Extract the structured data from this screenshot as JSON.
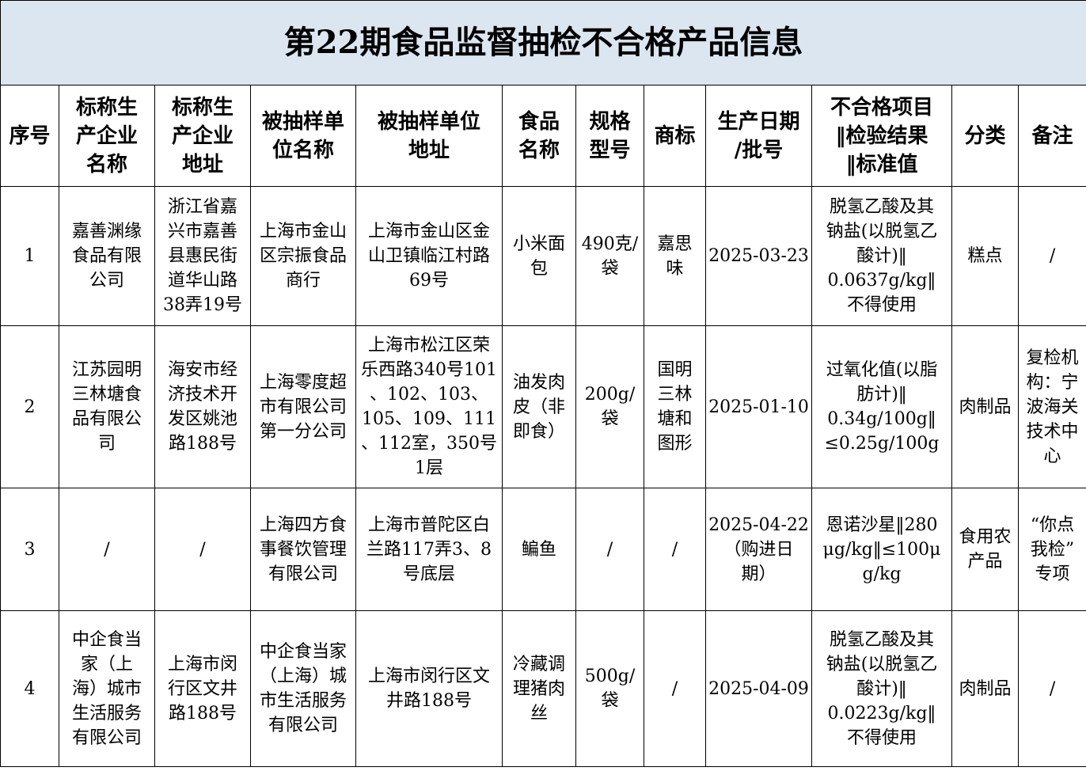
{
  "title": "第22期食品监督抽检不合格产品信息",
  "headers": [
    "序号",
    "标称生\n产企业\n名称",
    "标称生\n产企业\n地址",
    "被抽样单\n位名称",
    "被抽样单位\n地址",
    "食品\n名称",
    "规格\n型号",
    "商标",
    "生产日期\n/批号",
    "不合格项目\n‖检验结果\n‖标准值",
    "分类",
    "备注"
  ],
  "rows": [
    [
      "1",
      "嘉善渊缘\n食品有限\n公司",
      "浙江省嘉\n兴市嘉善\n县惠民街\n道华山路\n38弄19号",
      "上海市金山\n区宗振食品\n商行",
      "上海市金山区金\n山卫镇临江村路\n69号",
      "小米面\n包",
      "490克/\n袋",
      "嘉思\n味",
      "2025-03-23",
      "脱氢乙酸及其\n钠盐(以脱氢乙\n酸计)‖\n0.0637g/kg‖\n不得使用",
      "糕点",
      "/"
    ],
    [
      "2",
      "江苏园明\n三林塘食\n品有限公\n司",
      "海安市经\n济技术开\n发区姚池\n路188号",
      "上海零度超\n市有限公司\n第一分公司",
      "上海市松江区荣\n乐西路340号101\n、102、103、\n105、109、111\n、112室，350号\n1层",
      "油发肉\n皮（非\n即食）",
      "200g/\n袋",
      "国明\n三林\n塘和\n图形",
      "2025-01-10",
      "过氧化值(以脂\n肪计)‖\n0.34g/100g‖\n≤0.25g/100g",
      "肉制品",
      "复检机\n构：宁\n波海关\n技术中\n心"
    ],
    [
      "3",
      "/",
      "/",
      "上海四方食\n事餐饮管理\n有限公司",
      "上海市普陀区白\n兰路117弄3、8\n号底层",
      "鳊鱼",
      "/",
      "/",
      "2025-04-22\n（购进日\n期）",
      "恩诺沙星‖280\nμg/kg‖≤100μ\ng/kg",
      "食用农\n产品",
      "“你点\n我检”\n专项"
    ],
    [
      "4",
      "中企食当\n家（上\n海）城市\n生活服务\n有限公司",
      "上海市闵\n行区文井\n路188号",
      "中企食当家\n（上海）城\n市生活服务\n有限公司",
      "上海市闵行区文\n井路188号",
      "冷藏调\n理猪肉\n丝",
      "500g/\n袋",
      "/",
      "2025-04-09",
      "脱氢乙酸及其\n钠盐(以脱氢乙\n酸计)‖\n0.0223g/kg‖\n不得使用",
      "肉制品",
      "/"
    ]
  ],
  "colors": {
    "title_bg": "#dce6f1",
    "border": "#000000"
  }
}
